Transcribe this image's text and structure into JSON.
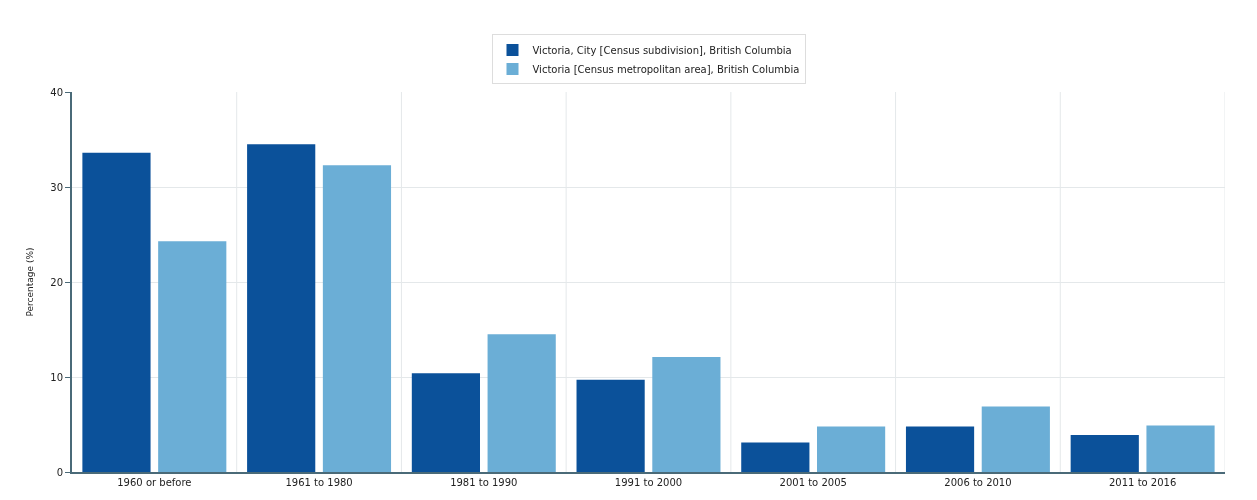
{
  "chart_data": {
    "type": "bar",
    "ylabel": "Percentage (%)",
    "categories": [
      "1960 or before",
      "1961 to 1980",
      "1981 to 1990",
      "1991 to 2000",
      "2001 to 2005",
      "2006 to 2010",
      "2011 to 2016"
    ],
    "series": [
      {
        "name": "Victoria, City [Census subdivision], British Columbia",
        "color": "#0b519a",
        "values": [
          33.6,
          34.5,
          10.4,
          9.7,
          3.1,
          4.8,
          3.9
        ]
      },
      {
        "name": "Victoria [Census metropolitan area], British Columbia",
        "color": "#6baed6",
        "values": [
          24.3,
          32.3,
          14.5,
          12.1,
          4.8,
          6.9,
          4.9
        ]
      }
    ],
    "ylim": [
      0,
      40
    ],
    "yticks": [
      0,
      10,
      20,
      30,
      40
    ],
    "grid": true,
    "legend": "top"
  }
}
